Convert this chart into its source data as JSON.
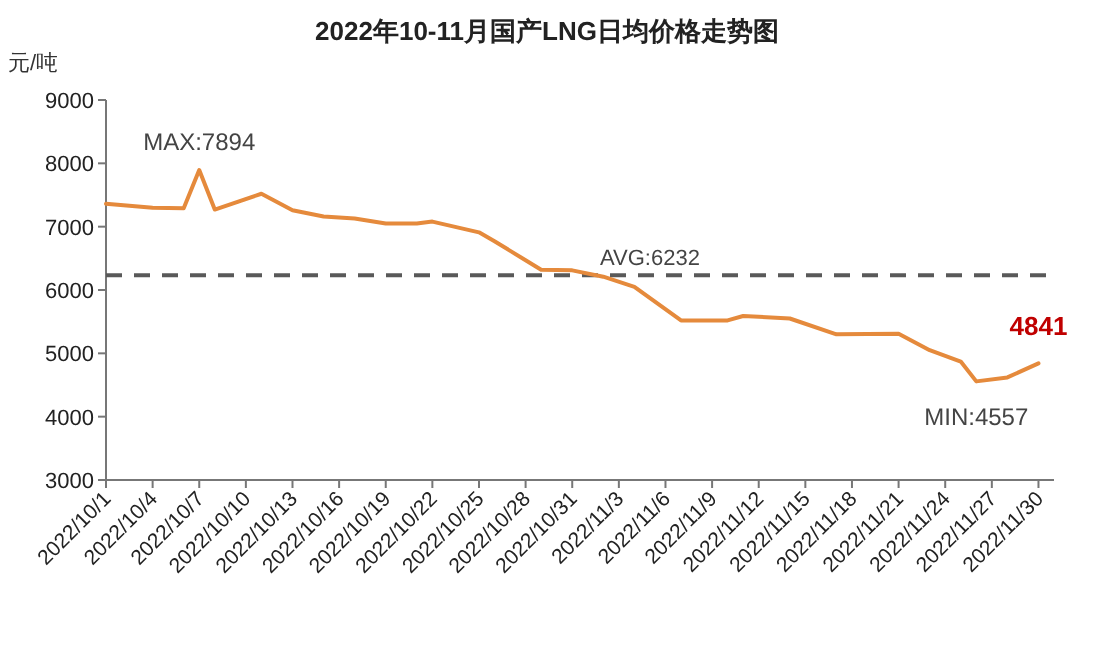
{
  "chart_data": {
    "type": "line",
    "title": "2022年10-11月国产LNG日均价格走势图",
    "ylabel": "元/吨",
    "x": [
      "2022-10-01",
      "2022-10-04",
      "2022-10-06",
      "2022-10-07",
      "2022-10-08",
      "2022-10-11",
      "2022-10-13",
      "2022-10-15",
      "2022-10-17",
      "2022-10-19",
      "2022-10-21",
      "2022-10-22",
      "2022-10-25",
      "2022-10-26",
      "2022-10-28",
      "2022-10-29",
      "2022-10-31",
      "2022-11-02",
      "2022-11-04",
      "2022-11-07",
      "2022-11-10",
      "2022-11-11",
      "2022-11-14",
      "2022-11-17",
      "2022-11-21",
      "2022-11-23",
      "2022-11-25",
      "2022-11-26",
      "2022-11-28",
      "2022-11-30"
    ],
    "series": [
      {
        "color": "#e58a3c",
        "values": [
          7360,
          7300,
          7290,
          7894,
          7270,
          7520,
          7260,
          7160,
          7130,
          7050,
          7050,
          7080,
          6910,
          6770,
          6470,
          6320,
          6310,
          6210,
          6050,
          5520,
          5520,
          5590,
          5550,
          5300,
          5310,
          5050,
          4870,
          4557,
          4620,
          4841
        ],
        "value_labels": [
          null,
          null,
          null,
          null,
          null,
          null,
          null,
          null,
          null,
          null,
          null,
          null,
          null,
          null,
          null,
          null,
          null,
          null,
          null,
          null,
          null,
          null,
          null,
          null,
          null,
          null,
          null,
          null,
          null,
          "4841"
        ]
      }
    ],
    "annotations": [
      {
        "text": "MAX:7894",
        "x": "2022-10-07",
        "y": 7894
      },
      {
        "text": "MIN:4557",
        "x": "2022-11-26",
        "y": 4557
      }
    ],
    "ref_lines": [
      {
        "axis": "y",
        "value": 6232,
        "label": "AVG:6232",
        "color": "#595959",
        "line_style": "dashed"
      }
    ],
    "xlim": [
      "2022-10-01",
      "2022-12-01"
    ],
    "xticks": [
      {
        "value": "2022-10-01",
        "label": "2022/10/1"
      },
      {
        "value": "2022-10-04",
        "label": "2022/10/4"
      },
      {
        "value": "2022-10-07",
        "label": "2022/10/7"
      },
      {
        "value": "2022-10-10",
        "label": "2022/10/10"
      },
      {
        "value": "2022-10-13",
        "label": "2022/10/13"
      },
      {
        "value": "2022-10-16",
        "label": "2022/10/16"
      },
      {
        "value": "2022-10-19",
        "label": "2022/10/19"
      },
      {
        "value": "2022-10-22",
        "label": "2022/10/22"
      },
      {
        "value": "2022-10-25",
        "label": "2022/10/25"
      },
      {
        "value": "2022-10-28",
        "label": "2022/10/28"
      },
      {
        "value": "2022-10-31",
        "label": "2022/10/31"
      },
      {
        "value": "2022-11-03",
        "label": "2022/11/3"
      },
      {
        "value": "2022-11-06",
        "label": "2022/11/6"
      },
      {
        "value": "2022-11-09",
        "label": "2022/11/9"
      },
      {
        "value": "2022-11-12",
        "label": "2022/11/12"
      },
      {
        "value": "2022-11-15",
        "label": "2022/11/15"
      },
      {
        "value": "2022-11-18",
        "label": "2022/11/18"
      },
      {
        "value": "2022-11-21",
        "label": "2022/11/21"
      },
      {
        "value": "2022-11-24",
        "label": "2022/11/24"
      },
      {
        "value": "2022-11-27",
        "label": "2022/11/27"
      },
      {
        "value": "2022-11-30",
        "label": "2022/11/30"
      }
    ],
    "ylim": [
      3000,
      9000
    ],
    "yticks": [
      3000,
      4000,
      5000,
      6000,
      7000,
      8000,
      9000
    ],
    "grid": false,
    "marker": "none",
    "line_style": "solid"
  }
}
